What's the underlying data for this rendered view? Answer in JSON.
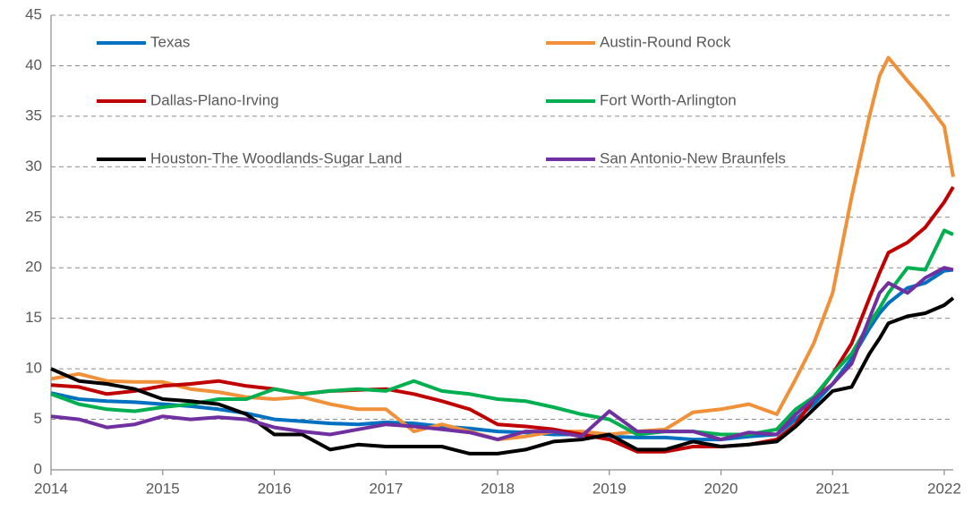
{
  "chart_data": {
    "type": "line",
    "x": [
      2014,
      2014.25,
      2014.5,
      2014.75,
      2015,
      2015.25,
      2015.5,
      2015.75,
      2016,
      2016.25,
      2016.5,
      2016.75,
      2017,
      2017.25,
      2017.5,
      2017.75,
      2018,
      2018.25,
      2018.5,
      2018.75,
      2019,
      2019.25,
      2019.5,
      2019.75,
      2020,
      2020.25,
      2020.5,
      2020.67,
      2020.83,
      2021,
      2021.17,
      2021.33,
      2021.42,
      2021.5,
      2021.67,
      2021.83,
      2022,
      2022.08
    ],
    "series": [
      {
        "name": "Texas",
        "color": "#0070c0",
        "values": [
          7.6,
          7.0,
          6.8,
          6.7,
          6.5,
          6.3,
          6.0,
          5.6,
          5.0,
          4.8,
          4.6,
          4.5,
          4.7,
          4.6,
          4.3,
          4.1,
          3.8,
          3.7,
          3.5,
          3.5,
          3.3,
          3.2,
          3.2,
          3.0,
          3.0,
          3.3,
          3.5,
          5.0,
          6.5,
          8.5,
          11,
          14,
          15.5,
          16.5,
          18,
          18.5,
          19.7,
          19.8
        ]
      },
      {
        "name": "Austin-Round Rock",
        "color": "#f0913a",
        "values": [
          9.0,
          9.5,
          8.8,
          8.7,
          8.7,
          8.0,
          7.7,
          7.2,
          7.0,
          7.2,
          6.5,
          6.0,
          6.0,
          3.8,
          4.5,
          3.8,
          3.0,
          3.3,
          3.8,
          3.8,
          3.5,
          3.8,
          4.0,
          5.7,
          6.0,
          6.5,
          5.5,
          9,
          12.5,
          17.5,
          27,
          35,
          39,
          40.8,
          38.5,
          36.5,
          34,
          29
        ]
      },
      {
        "name": "Dallas-Plano-Irving",
        "color": "#c00000",
        "values": [
          8.4,
          8.2,
          7.5,
          7.8,
          8.3,
          8.5,
          8.8,
          8.3,
          8.0,
          7.5,
          7.8,
          7.9,
          8.0,
          7.5,
          6.8,
          6.0,
          4.5,
          4.3,
          4.0,
          3.5,
          3.0,
          1.8,
          1.8,
          2.3,
          2.3,
          2.5,
          3.0,
          4.5,
          7.0,
          9.5,
          12.5,
          17,
          19.5,
          21.5,
          22.5,
          24,
          26.5,
          28
        ]
      },
      {
        "name": "Fort Worth-Arlington",
        "color": "#00b050",
        "values": [
          7.5,
          6.5,
          6.0,
          5.8,
          6.2,
          6.5,
          7.0,
          7.0,
          8.0,
          7.5,
          7.8,
          8.0,
          7.8,
          8.8,
          7.8,
          7.5,
          7.0,
          6.8,
          6.2,
          5.5,
          5.0,
          3.5,
          3.8,
          3.8,
          3.5,
          3.5,
          4.0,
          6.0,
          7.2,
          9.5,
          11.5,
          14.5,
          16,
          17.5,
          20,
          19.8,
          23.7,
          23.3
        ]
      },
      {
        "name": "Houston-The Woodlands-Sugar Land",
        "color": "#000000",
        "values": [
          10.0,
          8.8,
          8.5,
          8.0,
          7.0,
          6.8,
          6.5,
          5.5,
          3.5,
          3.5,
          2.0,
          2.5,
          2.3,
          2.3,
          2.3,
          1.6,
          1.6,
          2.0,
          2.8,
          3.0,
          3.5,
          2.0,
          2.0,
          2.8,
          2.3,
          2.5,
          2.8,
          4.3,
          6.0,
          7.8,
          8.2,
          11.5,
          13,
          14.5,
          15.2,
          15.5,
          16.3,
          17
        ]
      },
      {
        "name": "San Antonio-New Braunfels",
        "color": "#7030a0",
        "values": [
          5.3,
          5.0,
          4.2,
          4.5,
          5.3,
          5.0,
          5.2,
          5.0,
          4.2,
          3.8,
          3.5,
          4.0,
          4.5,
          4.3,
          4.0,
          3.7,
          3.0,
          3.8,
          3.8,
          3.3,
          5.8,
          3.8,
          3.8,
          3.8,
          3.0,
          3.7,
          3.5,
          5.5,
          7.0,
          8.5,
          10.5,
          15,
          17.5,
          18.5,
          17.5,
          19,
          20,
          19.8
        ]
      }
    ],
    "xlim": [
      2014,
      2022.08
    ],
    "xticks": [
      2014,
      2015,
      2016,
      2017,
      2018,
      2019,
      2020,
      2021,
      2022
    ],
    "ylim": [
      0,
      45
    ],
    "yticks": [
      0,
      5,
      10,
      15,
      20,
      25,
      30,
      35,
      40,
      45
    ],
    "grid": true
  }
}
